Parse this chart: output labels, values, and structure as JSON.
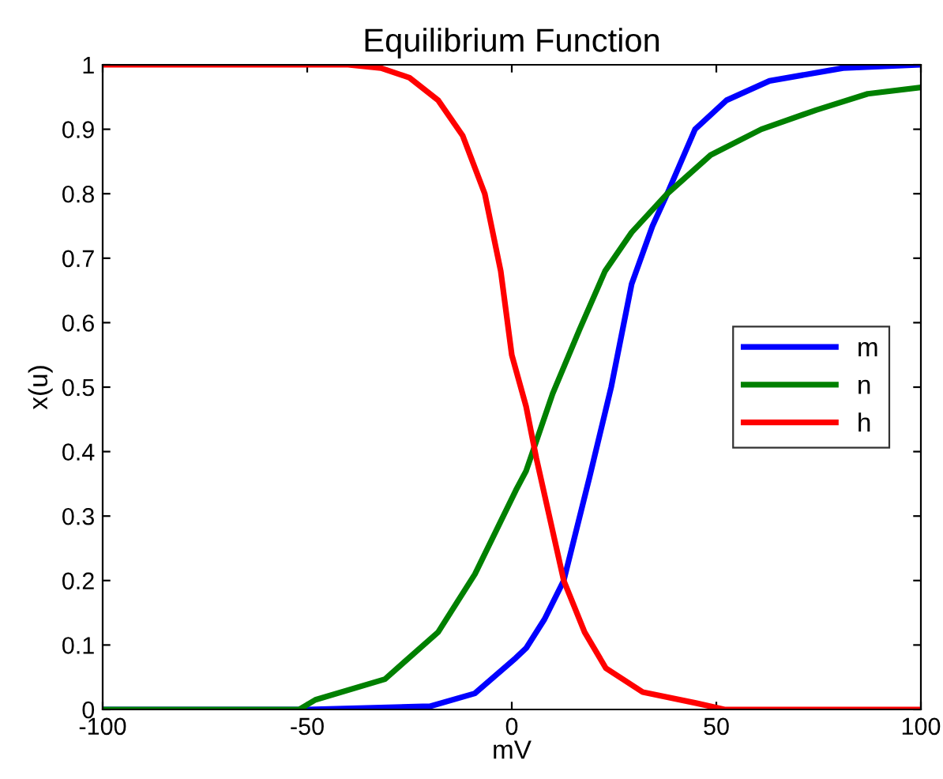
{
  "chart_data": {
    "type": "line",
    "title": "Equilibrium Function",
    "xlabel": "mV",
    "ylabel": "x(u)",
    "xlim": [
      -100,
      100
    ],
    "xticks": [
      -100,
      -50,
      0,
      50,
      100
    ],
    "ylim": [
      0,
      1
    ],
    "yticks": [
      0,
      0.1,
      0.2,
      0.3,
      0.4,
      0.5,
      0.6,
      0.7,
      0.8,
      0.9,
      1
    ],
    "grid": false,
    "legend": "right",
    "marker": "none",
    "line_style": "solid",
    "series": [
      {
        "name": "m",
        "color": "#0000ff",
        "x": [
          -100,
          -50,
          -20,
          -9,
          1,
          3.5,
          8,
          12.7,
          19,
          24.3,
          29.3,
          34.4,
          38,
          44.8,
          52.5,
          63,
          81,
          100
        ],
        "values": [
          0,
          0,
          0.005,
          0.025,
          0.08,
          0.095,
          0.14,
          0.2,
          0.36,
          0.5,
          0.66,
          0.75,
          0.8,
          0.9,
          0.945,
          0.975,
          0.995,
          1
        ]
      },
      {
        "name": "n",
        "color": "#008000",
        "x": [
          -100,
          -52,
          -48,
          -31,
          -18,
          -9,
          1,
          3.5,
          10,
          16.6,
          22.8,
          29.3,
          38,
          48.6,
          61,
          74.5,
          87,
          100
        ],
        "values": [
          0,
          0,
          0.015,
          0.047,
          0.12,
          0.21,
          0.34,
          0.37,
          0.49,
          0.59,
          0.68,
          0.74,
          0.8,
          0.86,
          0.9,
          0.93,
          0.955,
          0.965
        ]
      },
      {
        "name": "h",
        "color": "#ff0000",
        "x": [
          -100,
          -40,
          -32,
          -25,
          -18,
          -12,
          -6.6,
          -2.7,
          0,
          3.5,
          6,
          12.7,
          17.8,
          23,
          32,
          45,
          52,
          100
        ],
        "values": [
          1,
          1,
          0.995,
          0.98,
          0.945,
          0.89,
          0.8,
          0.68,
          0.55,
          0.47,
          0.39,
          0.2,
          0.12,
          0.064,
          0.027,
          0.01,
          0,
          0
        ]
      }
    ]
  }
}
